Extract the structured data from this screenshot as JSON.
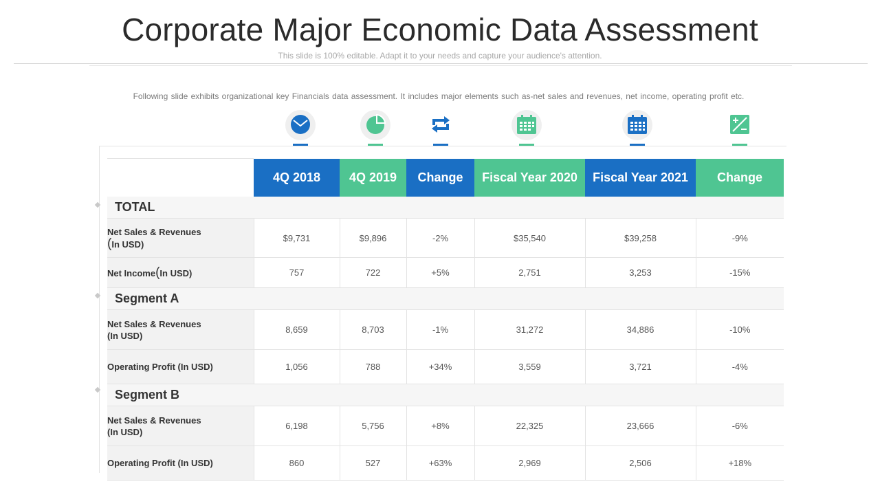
{
  "header": {
    "title": "Corporate Major Economic Data Assessment",
    "subtitle": "This slide is 100% editable. Adapt it to your needs and capture your audience's attention."
  },
  "description": "Following slide exhibits organizational  key Financials data assessment. It includes major elements such as-net sales and revenues,  net income, operating profit  etc.",
  "colors": {
    "blue": "#1a6fc4",
    "green": "#4fc592"
  },
  "icons": [
    "mail-icon",
    "pie-chart-icon",
    "refresh-icon",
    "calendar-icon",
    "calendar-grid-icon",
    "plus-minus-icon"
  ],
  "table": {
    "columns": [
      "4Q 2018",
      "4Q 2019",
      "Change",
      "Fiscal Year 2020",
      "Fiscal Year 2021",
      "Change"
    ],
    "sections": [
      {
        "title": "TOTAL",
        "rows": [
          {
            "label": "Net Sales & Revenues",
            "unit": "In USD)",
            "values": [
              "$9,731",
              "$9,896",
              "-2%",
              "$35,540",
              "$39,258",
              "-9%"
            ]
          },
          {
            "label": "Net Income",
            "unit": "In USD)",
            "values": [
              "757",
              "722",
              "+5%",
              "2,751",
              "3,253",
              "-15%"
            ]
          }
        ]
      },
      {
        "title": "Segment A",
        "rows": [
          {
            "label": "Net Sales & Revenues",
            "unit": "(In USD)",
            "values": [
              "8,659",
              "8,703",
              "-1%",
              "31,272",
              "34,886",
              "-10%"
            ]
          },
          {
            "label": "Operating Profit (In USD)",
            "unit": "",
            "values": [
              "1,056",
              "788",
              "+34%",
              "3,559",
              "3,721",
              "-4%"
            ]
          }
        ]
      },
      {
        "title": "Segment B",
        "rows": [
          {
            "label": "Net Sales & Revenues",
            "unit": "(In USD)",
            "values": [
              "6,198",
              "5,756",
              "+8%",
              "22,325",
              "23,666",
              "-6%"
            ]
          },
          {
            "label": "Operating Profit (In USD)",
            "unit": "",
            "values": [
              "860",
              "527",
              "+63%",
              "2,969",
              "2,506",
              "+18%"
            ]
          }
        ]
      }
    ]
  }
}
